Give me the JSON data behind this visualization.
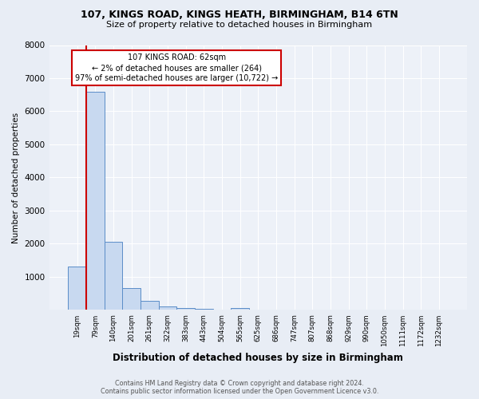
{
  "title1": "107, KINGS ROAD, KINGS HEATH, BIRMINGHAM, B14 6TN",
  "title2": "Size of property relative to detached houses in Birmingham",
  "xlabel": "Distribution of detached houses by size in Birmingham",
  "ylabel": "Number of detached properties",
  "categories": [
    "19sqm",
    "79sqm",
    "140sqm",
    "201sqm",
    "261sqm",
    "322sqm",
    "383sqm",
    "443sqm",
    "504sqm",
    "565sqm",
    "625sqm",
    "686sqm",
    "747sqm",
    "807sqm",
    "868sqm",
    "929sqm",
    "990sqm",
    "1050sqm",
    "1111sqm",
    "1172sqm",
    "1232sqm"
  ],
  "values": [
    1300,
    6600,
    2050,
    660,
    270,
    110,
    65,
    30,
    10,
    55,
    0,
    0,
    0,
    0,
    0,
    0,
    0,
    0,
    0,
    0,
    0
  ],
  "bar_color": "#c8d9f0",
  "bar_edge_color": "#5b8dc8",
  "vline_color": "#cc0000",
  "annotation_title": "107 KINGS ROAD: 62sqm",
  "annotation_line2": "← 2% of detached houses are smaller (264)",
  "annotation_line3": "97% of semi-detached houses are larger (10,722) →",
  "annotation_box_facecolor": "#ffffff",
  "annotation_box_edgecolor": "#cc0000",
  "ylim": [
    0,
    8000
  ],
  "yticks": [
    0,
    1000,
    2000,
    3000,
    4000,
    5000,
    6000,
    7000,
    8000
  ],
  "footer1": "Contains HM Land Registry data © Crown copyright and database right 2024.",
  "footer2": "Contains public sector information licensed under the Open Government Licence v3.0.",
  "bg_color": "#e8edf5",
  "plot_bg_color": "#edf1f8",
  "grid_color": "#ffffff"
}
